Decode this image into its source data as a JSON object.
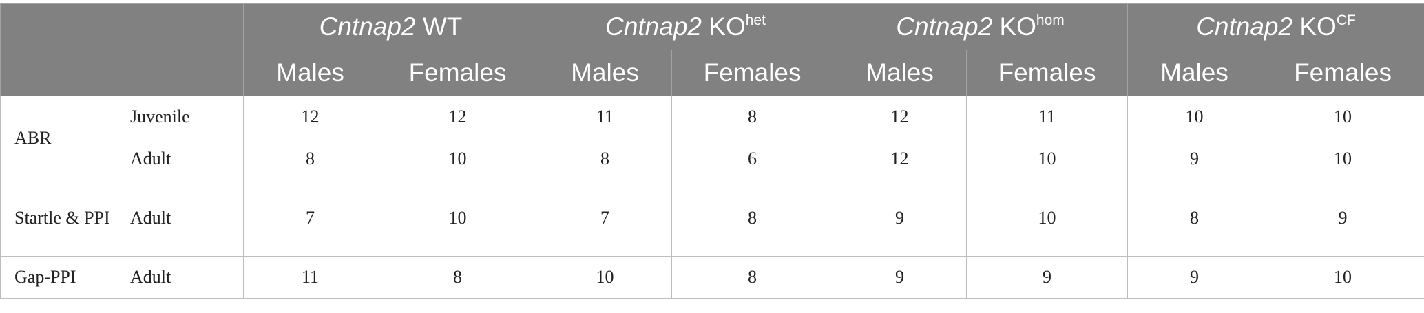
{
  "header": {
    "groups": [
      {
        "gene": "Cntnap2",
        "suffix": "WT",
        "sup": ""
      },
      {
        "gene": "Cntnap2",
        "suffix": "KO",
        "sup": "het"
      },
      {
        "gene": "Cntnap2",
        "suffix": "KO",
        "sup": "hom"
      },
      {
        "gene": "Cntnap2",
        "suffix": "KO",
        "sup": "CF"
      }
    ],
    "sex": [
      "Males",
      "Females",
      "Males",
      "Females",
      "Males",
      "Females",
      "Males",
      "Females"
    ]
  },
  "rows": [
    {
      "test": "ABR",
      "age": "Juvenile",
      "values": [
        "12",
        "12",
        "11",
        "8",
        "12",
        "11",
        "10",
        "10"
      ]
    },
    {
      "test": "",
      "age": "Adult",
      "values": [
        "8",
        "10",
        "8",
        "6",
        "12",
        "10",
        "9",
        "10"
      ]
    },
    {
      "test": "Startle & PPI",
      "age": "Adult",
      "values": [
        "7",
        "10",
        "7",
        "8",
        "9",
        "10",
        "8",
        "9"
      ]
    },
    {
      "test": "Gap-PPI",
      "age": "Adult",
      "values": [
        "11",
        "8",
        "10",
        "8",
        "9",
        "9",
        "9",
        "10"
      ]
    }
  ]
}
